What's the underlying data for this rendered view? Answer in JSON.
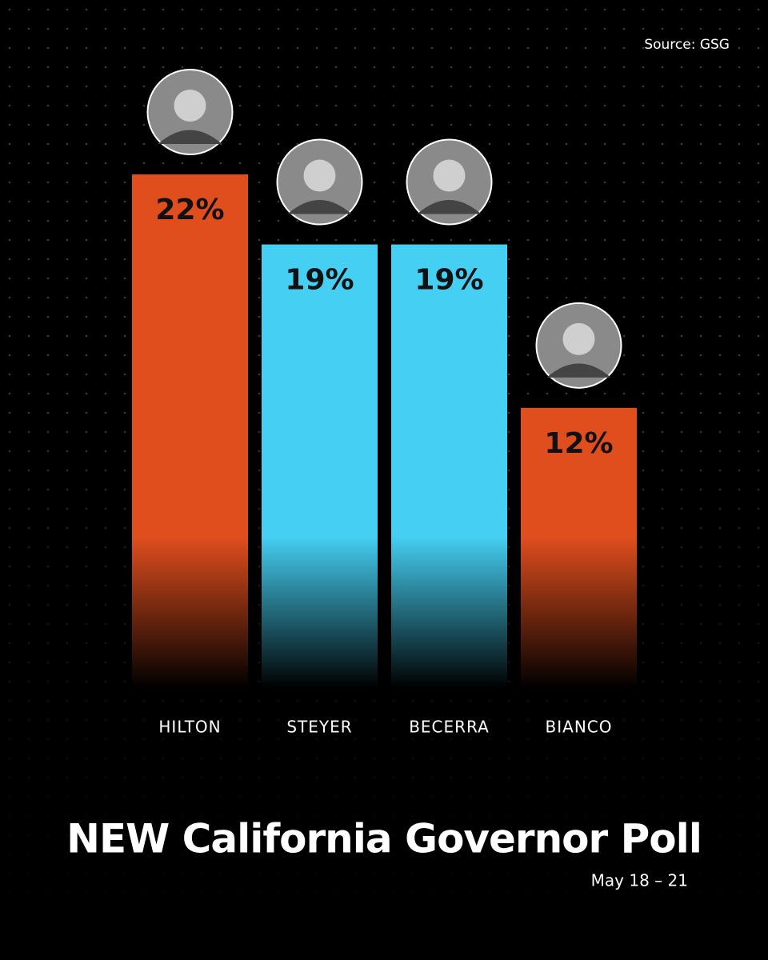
{
  "chart_data": {
    "type": "bar",
    "title": "NEW California Governor Poll",
    "subtitle": "May 18 – 21",
    "source": "Source: GSG",
    "categories": [
      "HILTON",
      "STEYER",
      "BECERRA",
      "BIANCO"
    ],
    "values": [
      22,
      19,
      19,
      12
    ],
    "value_labels": [
      "22%",
      "19%",
      "19%",
      "12%"
    ],
    "colors": [
      "#e14e1e",
      "#45cff2",
      "#45cff2",
      "#e14e1e"
    ]
  }
}
